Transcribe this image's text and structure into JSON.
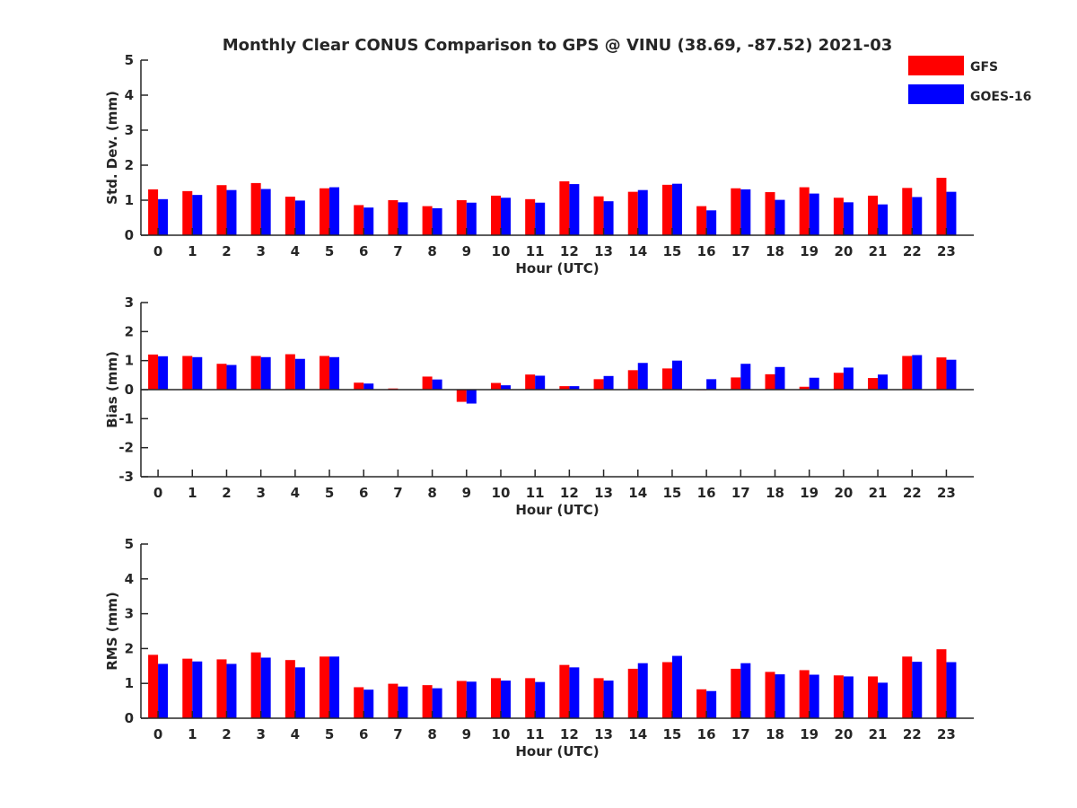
{
  "title": "Monthly Clear CONUS Comparison to GPS @ VINU (38.69, -87.52) 2021-03",
  "legend": {
    "placement": "top-right",
    "entries": [
      {
        "name": "GFS",
        "color": "#ff0000"
      },
      {
        "name": "GOES-16",
        "color": "#0000ff"
      }
    ]
  },
  "chart_data": [
    {
      "type": "bar",
      "ylabel": "Std. Dev. (mm)",
      "xlabel": "Hour (UTC)",
      "ylim": [
        0,
        5
      ],
      "yticks": [
        0,
        1,
        2,
        3,
        4,
        5
      ],
      "categories": [
        "0",
        "1",
        "2",
        "3",
        "4",
        "5",
        "6",
        "7",
        "8",
        "9",
        "10",
        "11",
        "12",
        "13",
        "14",
        "15",
        "16",
        "17",
        "18",
        "19",
        "20",
        "21",
        "22",
        "23"
      ],
      "series": [
        {
          "name": "GFS",
          "color": "#ff0000",
          "values": [
            1.31,
            1.26,
            1.43,
            1.49,
            1.1,
            1.34,
            0.86,
            1.0,
            0.83,
            1.0,
            1.13,
            1.03,
            1.54,
            1.11,
            1.24,
            1.44,
            0.83,
            1.34,
            1.23,
            1.37,
            1.07,
            1.13,
            1.35,
            1.64
          ]
        },
        {
          "name": "GOES-16",
          "color": "#0000ff",
          "values": [
            1.03,
            1.15,
            1.29,
            1.32,
            0.99,
            1.37,
            0.79,
            0.94,
            0.77,
            0.93,
            1.07,
            0.93,
            1.46,
            0.97,
            1.29,
            1.47,
            0.71,
            1.31,
            1.01,
            1.19,
            0.94,
            0.88,
            1.09,
            1.24
          ]
        }
      ]
    },
    {
      "type": "bar",
      "ylabel": "Bias (mm)",
      "xlabel": "Hour (UTC)",
      "ylim": [
        -3,
        3
      ],
      "yticks": [
        -3,
        -2,
        -1,
        0,
        1,
        2,
        3
      ],
      "categories": [
        "0",
        "1",
        "2",
        "3",
        "4",
        "5",
        "6",
        "7",
        "8",
        "9",
        "10",
        "11",
        "12",
        "13",
        "14",
        "15",
        "16",
        "17",
        "18",
        "19",
        "20",
        "21",
        "22",
        "23"
      ],
      "series": [
        {
          "name": "GFS",
          "color": "#ff0000",
          "values": [
            1.21,
            1.16,
            0.89,
            1.16,
            1.22,
            1.16,
            0.24,
            0.04,
            0.45,
            -0.42,
            0.23,
            0.52,
            0.12,
            0.36,
            0.67,
            0.73,
            0.0,
            0.42,
            0.53,
            0.1,
            0.58,
            0.4,
            1.16,
            1.11
          ]
        },
        {
          "name": "GOES-16",
          "color": "#0000ff",
          "values": [
            1.15,
            1.12,
            0.85,
            1.12,
            1.06,
            1.12,
            0.21,
            0.01,
            0.35,
            -0.48,
            0.15,
            0.48,
            0.12,
            0.47,
            0.92,
            1.0,
            0.36,
            0.89,
            0.78,
            0.41,
            0.76,
            0.52,
            1.19,
            1.03
          ]
        }
      ]
    },
    {
      "type": "bar",
      "ylabel": "RMS (mm)",
      "xlabel": "Hour (UTC)",
      "ylim": [
        0,
        5
      ],
      "yticks": [
        0,
        1,
        2,
        3,
        4,
        5
      ],
      "categories": [
        "0",
        "1",
        "2",
        "3",
        "4",
        "5",
        "6",
        "7",
        "8",
        "9",
        "10",
        "11",
        "12",
        "13",
        "14",
        "15",
        "16",
        "17",
        "18",
        "19",
        "20",
        "21",
        "22",
        "23"
      ],
      "series": [
        {
          "name": "GFS",
          "color": "#ff0000",
          "values": [
            1.82,
            1.71,
            1.69,
            1.89,
            1.67,
            1.77,
            0.89,
            0.99,
            0.95,
            1.07,
            1.15,
            1.15,
            1.53,
            1.15,
            1.42,
            1.61,
            0.83,
            1.42,
            1.33,
            1.38,
            1.23,
            1.2,
            1.77,
            1.98
          ]
        },
        {
          "name": "GOES-16",
          "color": "#0000ff",
          "values": [
            1.56,
            1.63,
            1.56,
            1.74,
            1.46,
            1.77,
            0.82,
            0.91,
            0.86,
            1.05,
            1.08,
            1.04,
            1.46,
            1.08,
            1.58,
            1.79,
            0.78,
            1.58,
            1.26,
            1.25,
            1.2,
            1.02,
            1.62,
            1.61
          ]
        }
      ]
    }
  ]
}
